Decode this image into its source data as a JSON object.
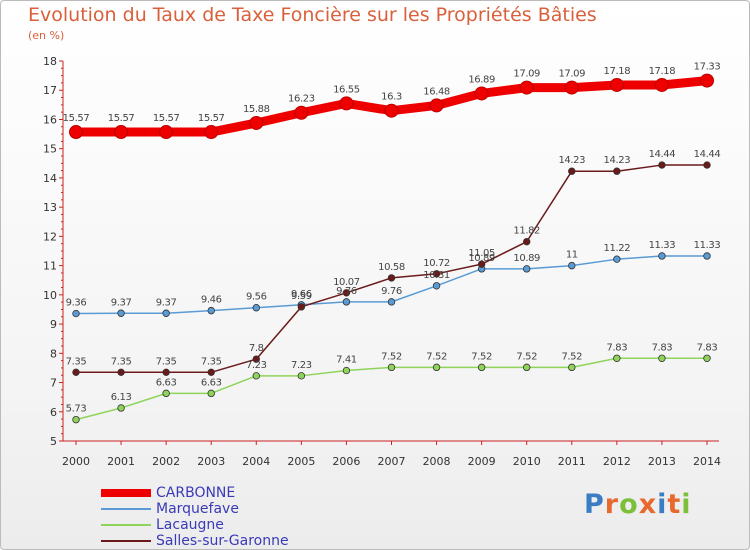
{
  "title": "Evolution du Taux de Taxe Foncière sur les Propriétés Bâties",
  "subtitle": "(en %)",
  "logo": {
    "text": "Proxiti",
    "letters": [
      "P",
      "r",
      "o",
      "x",
      "i",
      "t",
      "i"
    ],
    "colors": [
      "#3b7dc4",
      "#e8682e",
      "#7cbf3b",
      "#e8682e",
      "#3b7dc4",
      "#e8682e",
      "#7cbf3b"
    ]
  },
  "chart_data": {
    "type": "line",
    "title": "Evolution du Taux de Taxe Foncière sur les Propriétés Bâties",
    "ylabel": "(en %)",
    "xlabel": "",
    "x": [
      "2000",
      "2001",
      "2002",
      "2003",
      "2004",
      "2005",
      "2006",
      "2007",
      "2008",
      "2009",
      "2010",
      "2011",
      "2012",
      "2013",
      "2014"
    ],
    "ylim": [
      5,
      18
    ],
    "yticks": [
      "5",
      "6",
      "7",
      "8",
      "9",
      "10",
      "11",
      "12",
      "13",
      "14",
      "15",
      "16",
      "17",
      "18"
    ],
    "grid": false,
    "legend_position": "bottom-left",
    "series": [
      {
        "name": "CARBONNE",
        "color": "#ee0000",
        "values": [
          15.57,
          15.57,
          15.57,
          15.57,
          15.88,
          16.23,
          16.55,
          16.3,
          16.48,
          16.89,
          17.09,
          17.09,
          17.18,
          17.18,
          17.33
        ],
        "labels": [
          "15.57",
          "15.57",
          "15.57",
          "15.57",
          "15.88",
          "16.23",
          "16.55",
          "16.3",
          "16.48",
          "16.89",
          "17.09",
          "17.09",
          "17.18",
          "17.18",
          "17.33"
        ]
      },
      {
        "name": "Marquefave",
        "color": "#5a9bd5",
        "values": [
          9.36,
          9.37,
          9.37,
          9.46,
          9.56,
          9.66,
          9.76,
          9.76,
          10.31,
          10.89,
          10.89,
          11,
          11.22,
          11.33,
          11.33
        ],
        "labels": [
          "9.36",
          "9.37",
          "9.37",
          "9.46",
          "9.56",
          "9.66",
          "9.76",
          "9.76",
          "10.31",
          "10.89",
          "10.89",
          "11",
          "11.22",
          "11.33",
          "11.33"
        ]
      },
      {
        "name": "Lacaugne",
        "color": "#8fd45a",
        "values": [
          5.73,
          6.13,
          6.63,
          6.63,
          7.23,
          7.23,
          7.41,
          7.52,
          7.52,
          7.52,
          7.52,
          7.52,
          7.83,
          7.83,
          7.83
        ],
        "labels": [
          "5.73",
          "6.13",
          "6.63",
          "6.63",
          "7.23",
          "7.23",
          "7.41",
          "7.52",
          "7.52",
          "7.52",
          "7.52",
          "7.52",
          "7.83",
          "7.83",
          "7.83"
        ]
      },
      {
        "name": "Salles-sur-Garonne",
        "color": "#6b1a1a",
        "values": [
          7.35,
          7.35,
          7.35,
          7.35,
          7.8,
          9.59,
          10.07,
          10.58,
          10.72,
          11.05,
          11.82,
          14.23,
          14.23,
          14.44,
          14.44
        ],
        "labels": [
          "7.35",
          "7.35",
          "7.35",
          "7.35",
          "7.8",
          "9.59",
          "10.07",
          "10.58",
          "10.72",
          "11.05",
          "11.82",
          "14.23",
          "14.23",
          "14.44",
          "14.44"
        ]
      }
    ]
  }
}
